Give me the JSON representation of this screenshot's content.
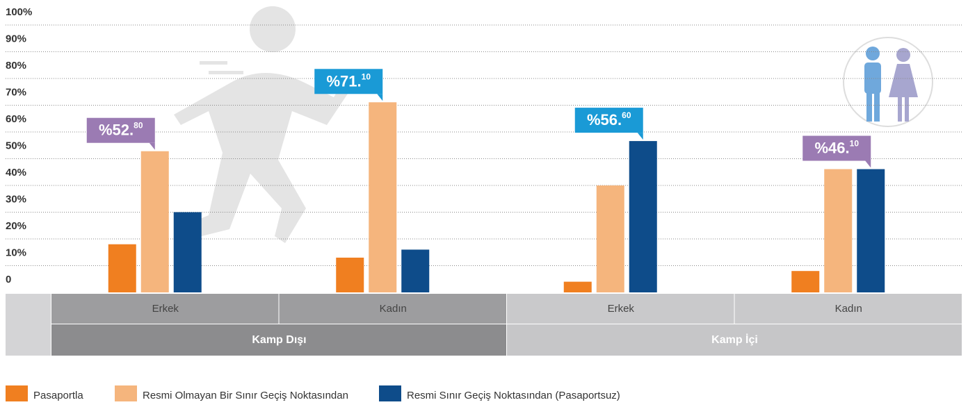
{
  "chart_data": {
    "type": "bar",
    "categories": [
      "Erkek",
      "Kadın",
      "Erkek",
      "Kadın"
    ],
    "groups": [
      "Kamp Dışı",
      "Kamp İçi"
    ],
    "series": [
      {
        "name": "Pasaportla",
        "color": "#f07f20",
        "values": [
          18,
          13,
          4,
          8
        ]
      },
      {
        "name": "Resmi Olmayan Bir Sınır Geçiş Noktasından",
        "color": "#f5b57d",
        "values": [
          52.8,
          71.1,
          40,
          46.1
        ],
        "value_labels": [
          "%52.80",
          "%71.10",
          null,
          null
        ],
        "label_colors": [
          "#9b7bb3",
          "#1a9ad6",
          null,
          null
        ]
      },
      {
        "name": "Resmi Sınır Geçiş Noktasından (Pasaportsuz)",
        "color": "#0e4c8a",
        "values": [
          30,
          16,
          56.6,
          46.1
        ],
        "value_labels": [
          null,
          null,
          "%56.60",
          "%46.10"
        ],
        "label_colors": [
          null,
          null,
          "#1a9ad6",
          "#9b7bb3"
        ]
      }
    ],
    "ylim": [
      0,
      100
    ],
    "yticks": [
      0,
      {
        "value": 10,
        "label": "10%"
      },
      {
        "value": 20,
        "label": "20%"
      },
      {
        "value": 30,
        "label": "30%"
      },
      {
        "value": 40,
        "label": "40%"
      },
      {
        "value": 50,
        "label": "50%"
      },
      {
        "value": 60,
        "label": "60%"
      },
      {
        "value": 70,
        "label": "70%"
      },
      {
        "value": 80,
        "label": "80%"
      },
      {
        "value": 90,
        "label": "90%"
      },
      {
        "value": 100,
        "label": "100%"
      }
    ],
    "grid": true
  }
}
